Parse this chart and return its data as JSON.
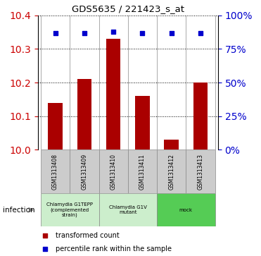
{
  "title": "GDS5635 / 221423_s_at",
  "samples": [
    "GSM1313408",
    "GSM1313409",
    "GSM1313410",
    "GSM1313411",
    "GSM1313412",
    "GSM1313413"
  ],
  "bar_values": [
    10.14,
    10.21,
    10.33,
    10.16,
    10.03,
    10.2
  ],
  "percentile_pct": [
    87,
    87,
    88,
    87,
    87,
    87
  ],
  "bar_color": "#AA0000",
  "percentile_color": "#0000CC",
  "ylim": [
    10.0,
    10.4
  ],
  "yticks": [
    10.0,
    10.1,
    10.2,
    10.3,
    10.4
  ],
  "right_yticks": [
    0,
    25,
    50,
    75,
    100
  ],
  "right_ylim": [
    0,
    100
  ],
  "group_colors": [
    "#cceecc",
    "#cceecc",
    "#55cc55"
  ],
  "group_labels": [
    "Chlamydia G1TEPP\n(complemented\nstrain)",
    "Chlamydia G1V\nmutant",
    "mock"
  ],
  "group_ranges": [
    [
      0,
      2
    ],
    [
      2,
      4
    ],
    [
      4,
      6
    ]
  ],
  "bar_width": 0.5,
  "left_tick_color": "#CC0000",
  "right_tick_color": "#0000CC",
  "sample_box_color": "#cccccc",
  "legend_red_label": "transformed count",
  "legend_blue_label": "percentile rank within the sample",
  "infection_label": "infection"
}
